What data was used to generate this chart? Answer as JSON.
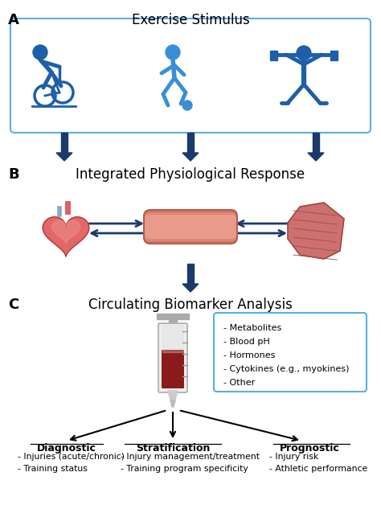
{
  "bg_color": "#ffffff",
  "panel_A_title": "Exercise Stimulus",
  "panel_B_title": "Integrated Physiological Response",
  "panel_C_title": "Circulating Biomarker Analysis",
  "arrow_color": "#1a3a6b",
  "box_border_color": "#5aafe6",
  "blue_dark": "#1a3a6b",
  "blue_mid": "#2e6eb5",
  "blue_light": "#5aafe6",
  "diagnostic_title": "Diagnostic",
  "diagnostic_items": [
    "- Injuries (acute/chronic)",
    "- Training status"
  ],
  "stratification_title": "Stratification",
  "stratification_items": [
    "- Injury management/treatment",
    "- Training program specificity"
  ],
  "prognostic_title": "Prognostic",
  "prognostic_items": [
    "- Injury risk",
    "- Athletic performance"
  ],
  "biomarker_items": [
    "- Metabolites",
    "- Blood pH",
    "- Hormones",
    "- Cytokines (e.g., myokines)",
    "- Other"
  ],
  "label_A": "A",
  "label_B": "B",
  "label_C": "C",
  "fig_width": 4.74,
  "fig_height": 6.28,
  "dpi": 100
}
